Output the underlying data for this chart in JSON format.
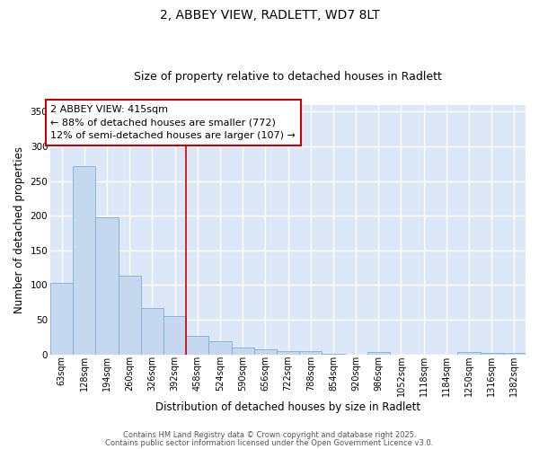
{
  "title": "2, ABBEY VIEW, RADLETT, WD7 8LT",
  "subtitle": "Size of property relative to detached houses in Radlett",
  "xlabel": "Distribution of detached houses by size in Radlett",
  "ylabel": "Number of detached properties",
  "categories": [
    "63sqm",
    "128sqm",
    "194sqm",
    "260sqm",
    "326sqm",
    "392sqm",
    "458sqm",
    "524sqm",
    "590sqm",
    "656sqm",
    "722sqm",
    "788sqm",
    "854sqm",
    "920sqm",
    "986sqm",
    "1052sqm",
    "1118sqm",
    "1184sqm",
    "1250sqm",
    "1316sqm",
    "1382sqm"
  ],
  "values": [
    103,
    272,
    198,
    114,
    67,
    55,
    27,
    19,
    10,
    7,
    4,
    4,
    1,
    0,
    3,
    0,
    0,
    0,
    3,
    2,
    2
  ],
  "bar_color": "#c5d8f0",
  "bar_edge_color": "#7bafd4",
  "vline_pos": 5.5,
  "vline_color": "#cc0000",
  "annotation_text": "2 ABBEY VIEW: 415sqm\n← 88% of detached houses are smaller (772)\n12% of semi-detached houses are larger (107) →",
  "annotation_box_edgecolor": "#cc0000",
  "fig_background_color": "#ffffff",
  "ax_background_color": "#dce8f8",
  "grid_color": "#ffffff",
  "ylim": [
    0,
    360
  ],
  "yticks": [
    0,
    50,
    100,
    150,
    200,
    250,
    300,
    350
  ],
  "footer_line1": "Contains HM Land Registry data © Crown copyright and database right 2025.",
  "footer_line2": "Contains public sector information licensed under the Open Government Licence v3.0.",
  "title_fontsize": 10,
  "subtitle_fontsize": 9,
  "tick_fontsize": 7,
  "ylabel_fontsize": 8.5,
  "xlabel_fontsize": 8.5,
  "annotation_fontsize": 8
}
